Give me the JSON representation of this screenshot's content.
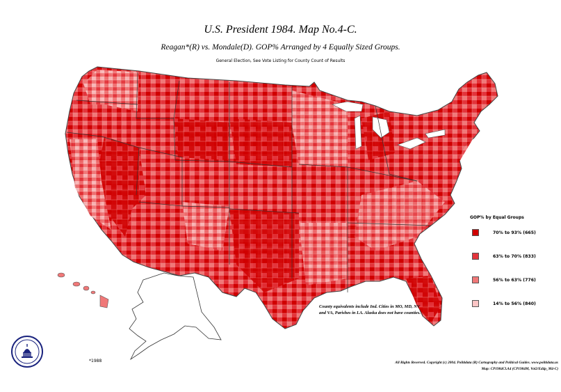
{
  "title": "U.S. President 1984. Map No.4-C.",
  "subtitle": "Reagan*(R) vs. Mondale(D). GOP% Arranged by 4 Equally Sized Groups.",
  "note": "General Election, See Vote Listing for County Count of Results",
  "legend": {
    "title": "GOP% by Equal Groups",
    "items": [
      {
        "label": "70% to 93% (665)",
        "color": "#d00000"
      },
      {
        "label": "63% to 70% (833)",
        "color": "#e3343b"
      },
      {
        "label": "56% to 63% (776)",
        "color": "#f07878"
      },
      {
        "label": "14% to 56% (840)",
        "color": "#fbc5c5"
      }
    ]
  },
  "caveat": "County equivalents include Ind. Cities in MO, MD, NV and VA, Parishes in LA. Alaska does not have counties.",
  "credit_line1": "All Rights Reserved. Copyright (c) 2004. Politidata (R) Cartography and Political Guides. www.politidata.us",
  "credit_line2": "Map: CP1984Cl.A4 (CP1984M, Vol2/Ed4p_M4-C)",
  "alaska_label": "*1988",
  "seal_icon": "capitol-seal-icon"
}
